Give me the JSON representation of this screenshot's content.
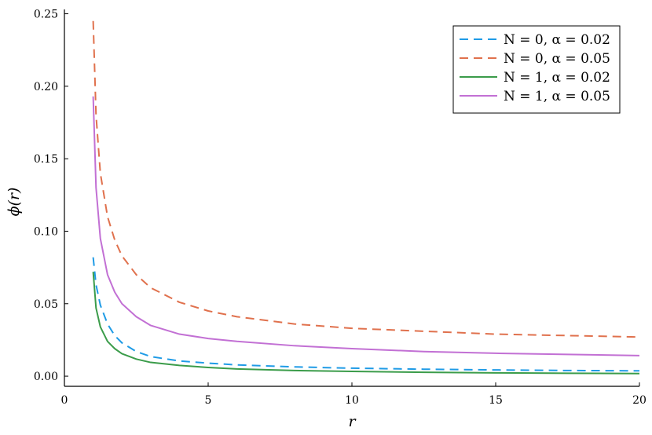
{
  "chart_data": {
    "type": "line",
    "title": "",
    "xlabel": "r",
    "ylabel": "ϕ(r)",
    "xlim": [
      0,
      20
    ],
    "ylim": [
      -0.007,
      0.253
    ],
    "xticks": [
      {
        "value": 0,
        "label": "0"
      },
      {
        "value": 5,
        "label": "5"
      },
      {
        "value": 10,
        "label": "10"
      },
      {
        "value": 15,
        "label": "15"
      },
      {
        "value": 20,
        "label": "20"
      }
    ],
    "yticks": [
      {
        "value": 0.0,
        "label": "0.00"
      },
      {
        "value": 0.05,
        "label": "0.05"
      },
      {
        "value": 0.1,
        "label": "0.10"
      },
      {
        "value": 0.15,
        "label": "0.15"
      },
      {
        "value": 0.2,
        "label": "0.20"
      },
      {
        "value": 0.25,
        "label": "0.25"
      }
    ],
    "grid": false,
    "legend_position": "top-right",
    "series": [
      {
        "name": "N = 0, α = 0.02",
        "color": "#1f9be6",
        "dash": "dashed",
        "x": [
          1.0,
          1.1,
          1.25,
          1.5,
          1.75,
          2.0,
          2.5,
          3.0,
          4.0,
          5.0,
          6.0,
          8.0,
          10.0,
          12.5,
          15.0,
          17.5,
          20.0
        ],
        "y": [
          0.082,
          0.063,
          0.049,
          0.036,
          0.028,
          0.023,
          0.017,
          0.0135,
          0.0105,
          0.009,
          0.0078,
          0.0064,
          0.0055,
          0.0048,
          0.0043,
          0.0039,
          0.0037
        ]
      },
      {
        "name": "N = 0, α = 0.05",
        "color": "#e0714d",
        "dash": "dashed",
        "x": [
          1.0,
          1.1,
          1.25,
          1.5,
          1.75,
          2.0,
          2.5,
          3.0,
          4.0,
          5.0,
          6.0,
          8.0,
          10.0,
          12.5,
          15.0,
          17.5,
          20.0
        ],
        "y": [
          0.245,
          0.18,
          0.14,
          0.11,
          0.094,
          0.083,
          0.07,
          0.061,
          0.051,
          0.045,
          0.041,
          0.036,
          0.033,
          0.031,
          0.029,
          0.028,
          0.027
        ]
      },
      {
        "name": "N = 1, α = 0.02",
        "color": "#3b9c4a",
        "dash": "solid",
        "x": [
          1.0,
          1.1,
          1.25,
          1.5,
          1.75,
          2.0,
          2.5,
          3.0,
          4.0,
          5.0,
          6.0,
          8.0,
          10.0,
          12.5,
          15.0,
          17.5,
          20.0
        ],
        "y": [
          0.072,
          0.047,
          0.034,
          0.024,
          0.019,
          0.0155,
          0.0118,
          0.0095,
          0.0074,
          0.006,
          0.005,
          0.0039,
          0.0033,
          0.0027,
          0.0023,
          0.002,
          0.0018
        ]
      },
      {
        "name": "N = 1, α = 0.05",
        "color": "#c270d4",
        "dash": "solid",
        "x": [
          1.0,
          1.1,
          1.25,
          1.5,
          1.75,
          2.0,
          2.5,
          3.0,
          4.0,
          5.0,
          6.0,
          8.0,
          10.0,
          12.5,
          15.0,
          17.5,
          20.0
        ],
        "y": [
          0.193,
          0.13,
          0.095,
          0.07,
          0.058,
          0.05,
          0.041,
          0.035,
          0.029,
          0.026,
          0.024,
          0.021,
          0.019,
          0.017,
          0.0158,
          0.015,
          0.0142
        ]
      }
    ]
  }
}
